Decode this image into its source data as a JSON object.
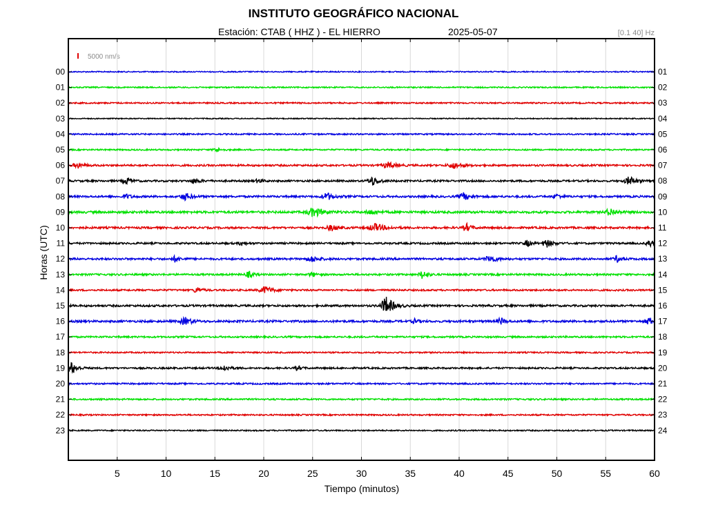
{
  "header": {
    "title": "INSTITUTO GEOGRÁFICO NACIONAL",
    "station": "Estación:  CTAB ( HHZ ) - EL HIERRO",
    "date": "2025-05-07",
    "filter": "[0.1 40] Hz",
    "scale_label": "5000 nm/s"
  },
  "colors": {
    "blue": "#0000e0",
    "green": "#00e000",
    "red": "#e00000",
    "black": "#000000",
    "grid": "#d8d8d8",
    "scale_bar": "#e00000"
  },
  "chart_data": {
    "type": "line",
    "xlabel": "Tiempo (minutos)",
    "ylabel": "Horas (UTC)",
    "xlim": [
      0,
      60
    ],
    "x_ticks": [
      5,
      10,
      15,
      20,
      25,
      30,
      35,
      40,
      45,
      50,
      55,
      60
    ],
    "left_tick_labels": [
      "00",
      "01",
      "02",
      "03",
      "04",
      "05",
      "06",
      "07",
      "08",
      "09",
      "10",
      "11",
      "12",
      "13",
      "14",
      "15",
      "16",
      "17",
      "18",
      "19",
      "20",
      "21",
      "22",
      "23"
    ],
    "right_tick_labels": [
      "01",
      "02",
      "03",
      "04",
      "05",
      "06",
      "07",
      "08",
      "09",
      "10",
      "11",
      "12",
      "13",
      "14",
      "15",
      "16",
      "17",
      "18",
      "19",
      "20",
      "21",
      "22",
      "23",
      "24"
    ],
    "grid": true,
    "color_cycle": [
      "blue",
      "green",
      "red",
      "black"
    ],
    "traces": [
      {
        "hour": 0,
        "noise": 0.8,
        "events": []
      },
      {
        "hour": 1,
        "noise": 0.9,
        "events": []
      },
      {
        "hour": 2,
        "noise": 1.0,
        "events": []
      },
      {
        "hour": 3,
        "noise": 0.7,
        "events": []
      },
      {
        "hour": 4,
        "noise": 1.0,
        "events": []
      },
      {
        "hour": 5,
        "noise": 1.0,
        "events": [
          {
            "t": 15.2,
            "amp": 3,
            "dur": 0.6
          }
        ]
      },
      {
        "hour": 6,
        "noise": 1.3,
        "events": [
          {
            "t": 1.0,
            "amp": 3,
            "dur": 0.8
          },
          {
            "t": 32.8,
            "amp": 4,
            "dur": 1.0
          },
          {
            "t": 39.5,
            "amp": 4,
            "dur": 1.0
          }
        ]
      },
      {
        "hour": 7,
        "noise": 1.3,
        "events": [
          {
            "t": 6.0,
            "amp": 5,
            "dur": 0.6
          },
          {
            "t": 13.0,
            "amp": 3,
            "dur": 0.8
          },
          {
            "t": 19.5,
            "amp": 3,
            "dur": 0.5
          },
          {
            "t": 31.2,
            "amp": 6,
            "dur": 0.8
          },
          {
            "t": 57.5,
            "amp": 6,
            "dur": 0.8
          }
        ]
      },
      {
        "hour": 8,
        "noise": 1.4,
        "events": [
          {
            "t": 6.0,
            "amp": 3,
            "dur": 0.6
          },
          {
            "t": 12.0,
            "amp": 5,
            "dur": 0.8
          },
          {
            "t": 26.5,
            "amp": 5,
            "dur": 0.8
          },
          {
            "t": 40.5,
            "amp": 5,
            "dur": 0.8
          },
          {
            "t": 50.0,
            "amp": 3,
            "dur": 0.6
          }
        ]
      },
      {
        "hour": 9,
        "noise": 1.6,
        "events": [
          {
            "t": 25.2,
            "amp": 6,
            "dur": 1.2
          },
          {
            "t": 31.0,
            "amp": 3,
            "dur": 0.8
          },
          {
            "t": 55.5,
            "amp": 5,
            "dur": 0.8
          }
        ]
      },
      {
        "hour": 10,
        "noise": 1.4,
        "events": [
          {
            "t": 27.0,
            "amp": 4,
            "dur": 0.8
          },
          {
            "t": 31.5,
            "amp": 5,
            "dur": 1.2
          },
          {
            "t": 40.8,
            "amp": 5,
            "dur": 0.6
          }
        ]
      },
      {
        "hour": 11,
        "noise": 1.3,
        "events": [
          {
            "t": 17.8,
            "amp": 3,
            "dur": 0.5
          },
          {
            "t": 47.0,
            "amp": 4,
            "dur": 0.6
          },
          {
            "t": 49.0,
            "amp": 5,
            "dur": 0.8
          },
          {
            "t": 59.5,
            "amp": 5,
            "dur": 0.5
          }
        ]
      },
      {
        "hour": 12,
        "noise": 1.4,
        "events": [
          {
            "t": 11.0,
            "amp": 4,
            "dur": 0.6
          },
          {
            "t": 25.0,
            "amp": 4,
            "dur": 0.8
          },
          {
            "t": 43.2,
            "amp": 5,
            "dur": 0.8
          },
          {
            "t": 56.2,
            "amp": 4,
            "dur": 0.6
          }
        ]
      },
      {
        "hour": 13,
        "noise": 1.3,
        "events": [
          {
            "t": 18.5,
            "amp": 4,
            "dur": 0.6
          },
          {
            "t": 25.0,
            "amp": 3,
            "dur": 0.6
          },
          {
            "t": 36.3,
            "amp": 6,
            "dur": 0.6
          }
        ]
      },
      {
        "hour": 14,
        "noise": 1.2,
        "events": [
          {
            "t": 13.2,
            "amp": 4,
            "dur": 0.6
          },
          {
            "t": 20.2,
            "amp": 5,
            "dur": 1.0
          }
        ]
      },
      {
        "hour": 15,
        "noise": 1.4,
        "events": [
          {
            "t": 32.6,
            "amp": 12,
            "dur": 0.9
          }
        ]
      },
      {
        "hour": 16,
        "noise": 1.5,
        "events": [
          {
            "t": 12.0,
            "amp": 5,
            "dur": 0.8
          },
          {
            "t": 35.5,
            "amp": 3,
            "dur": 0.5
          },
          {
            "t": 44.3,
            "amp": 5,
            "dur": 0.5
          },
          {
            "t": 59.5,
            "amp": 5,
            "dur": 0.6
          }
        ]
      },
      {
        "hour": 17,
        "noise": 1.2,
        "events": []
      },
      {
        "hour": 18,
        "noise": 1.0,
        "events": []
      },
      {
        "hour": 19,
        "noise": 1.2,
        "events": [
          {
            "t": 0.4,
            "amp": 8,
            "dur": 0.7
          },
          {
            "t": 16.0,
            "amp": 4,
            "dur": 0.8
          },
          {
            "t": 23.5,
            "amp": 3,
            "dur": 0.5
          }
        ]
      },
      {
        "hour": 20,
        "noise": 1.1,
        "events": []
      },
      {
        "hour": 21,
        "noise": 1.1,
        "events": []
      },
      {
        "hour": 22,
        "noise": 1.0,
        "events": []
      },
      {
        "hour": 23,
        "noise": 0.9,
        "events": []
      }
    ]
  }
}
